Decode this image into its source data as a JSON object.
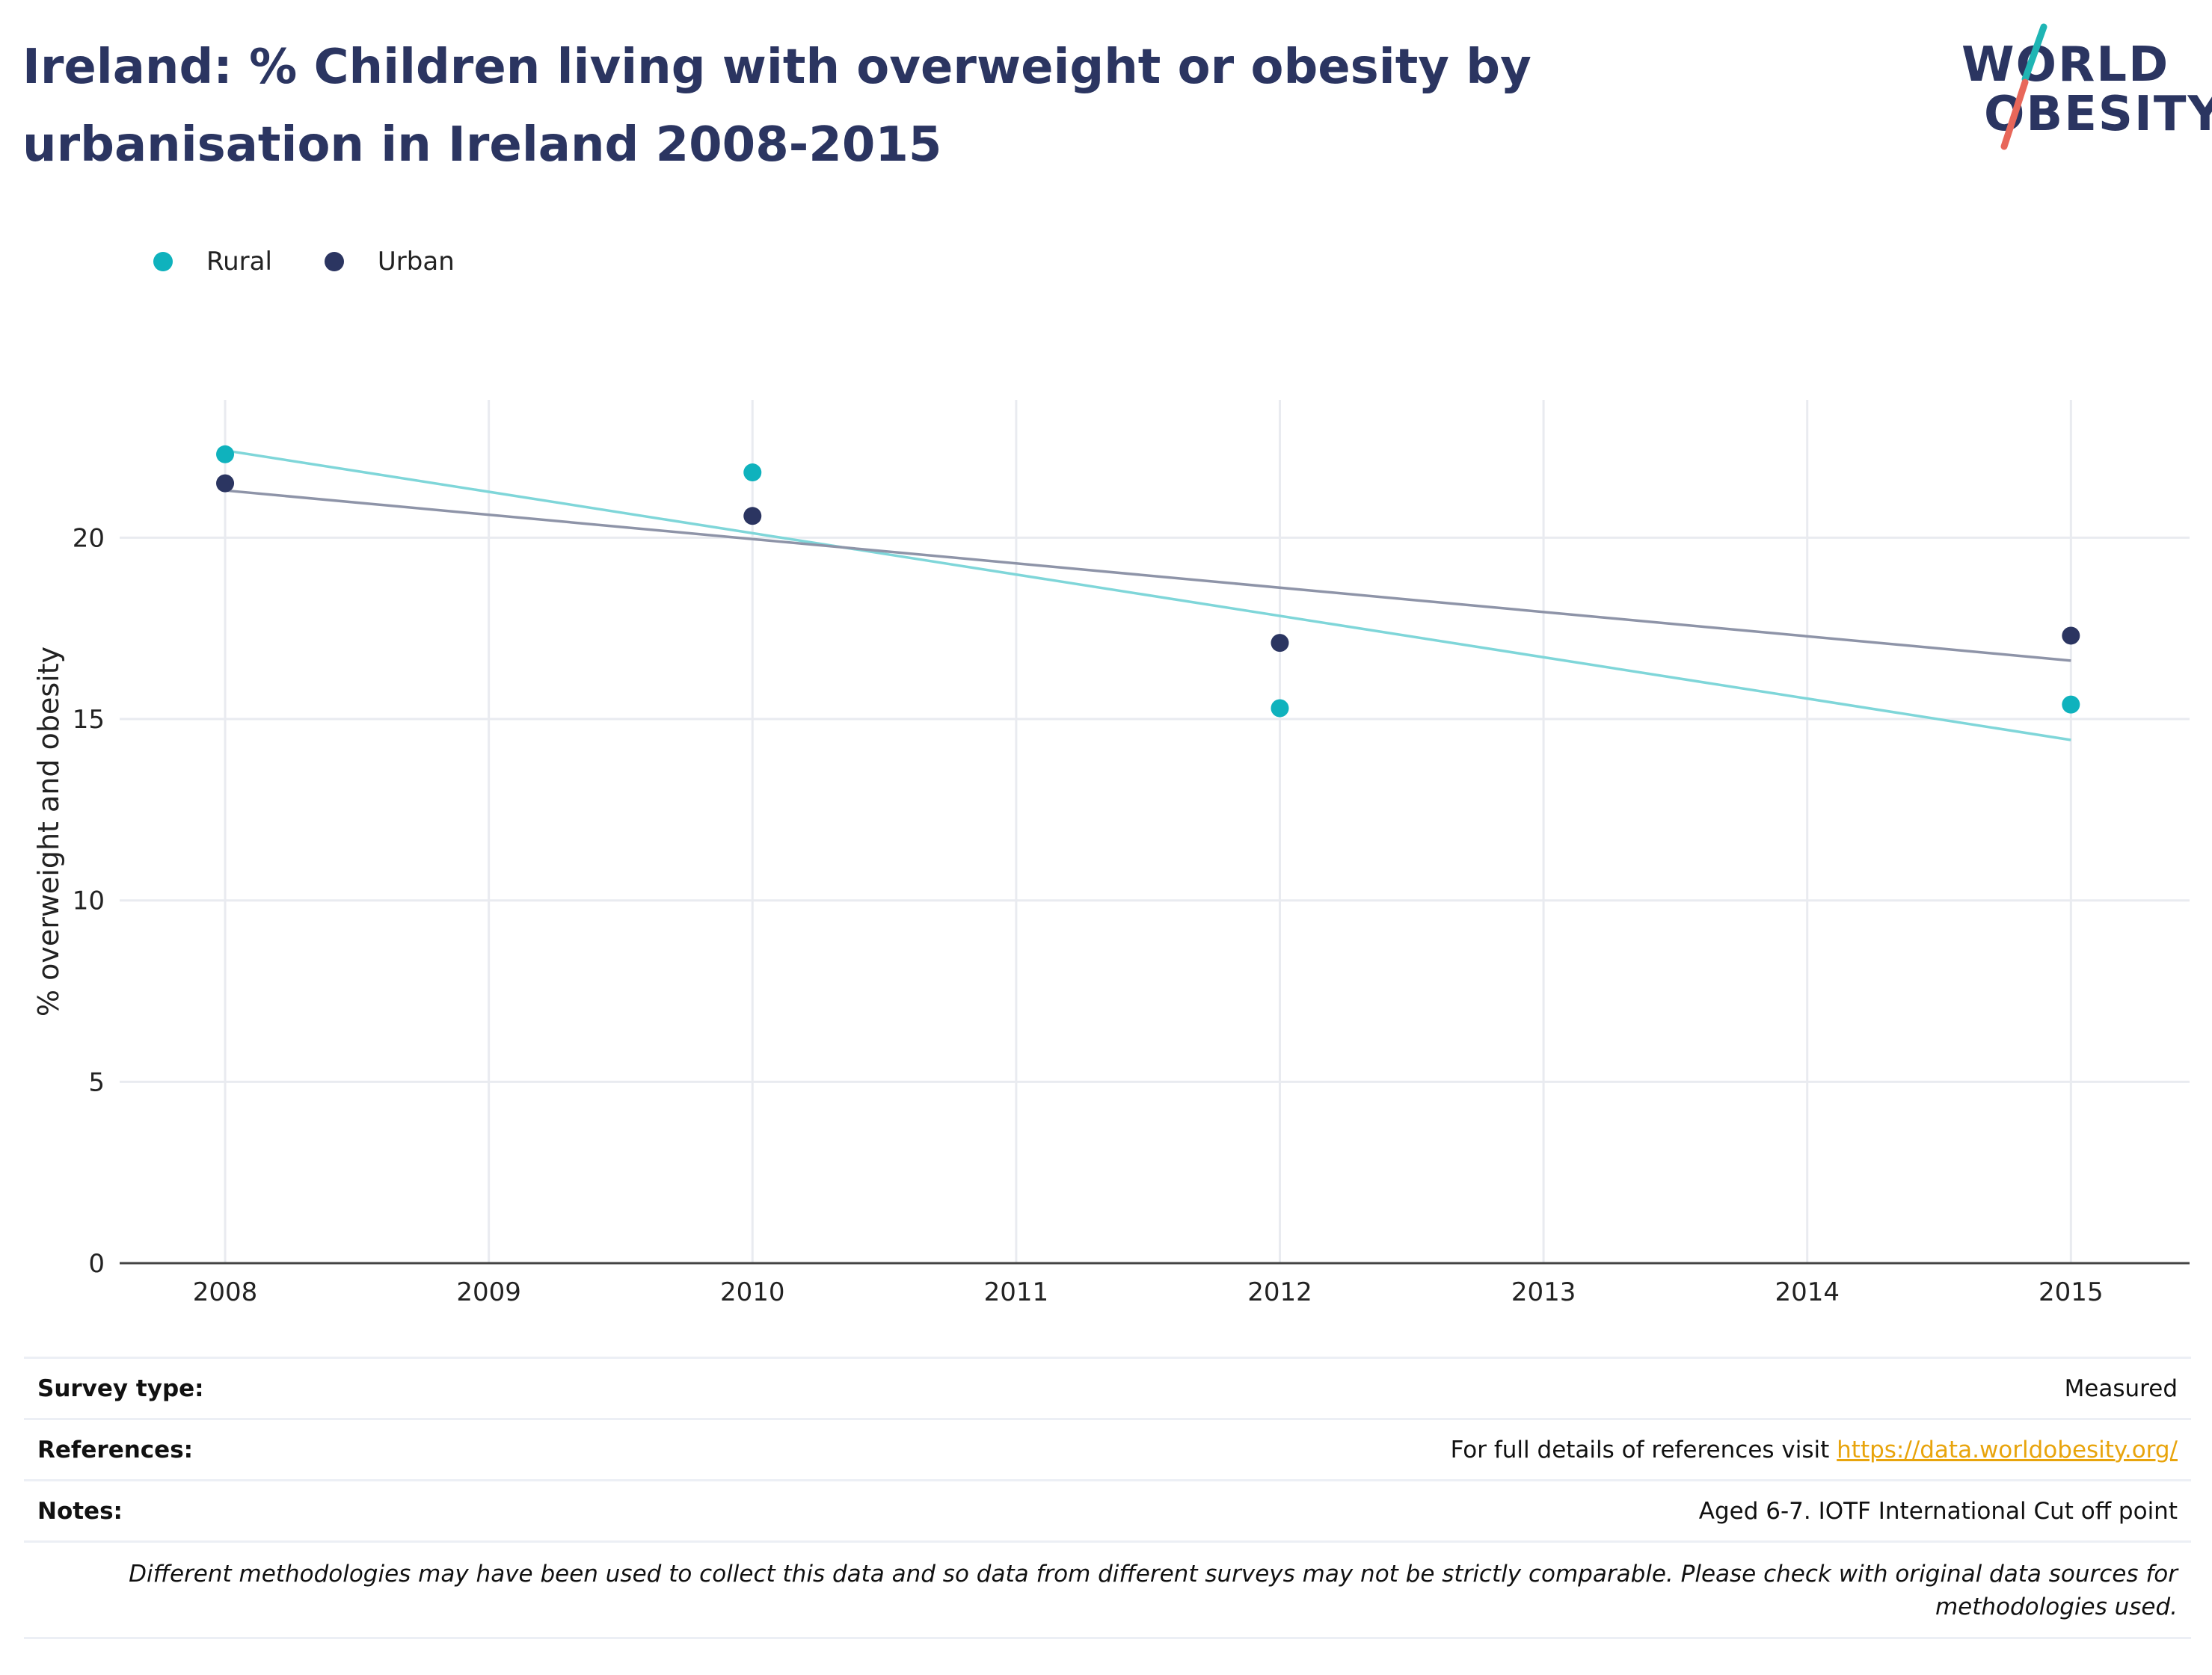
{
  "header": {
    "title": "Ireland: % Children living with overweight or obesity by urbanisation in Ireland 2008-2015"
  },
  "logo": {
    "line1": "WORLD",
    "line2": "OBESITY",
    "colors": {
      "text": "#2b3561",
      "slash_top": "#1fb5b4",
      "slash_bottom": "#e8675a"
    }
  },
  "chart_data": {
    "type": "scatter",
    "title": "Ireland: % Children living with overweight or obesity by urbanisation in Ireland 2008-2015",
    "xlabel": "",
    "ylabel": "% overweight and obesity",
    "xlim": [
      2007.6,
      2015.45
    ],
    "ylim": [
      0,
      23.8
    ],
    "x_ticks": [
      "2008",
      "2009",
      "2010",
      "2011",
      "2012",
      "2013",
      "2014",
      "2015"
    ],
    "y_ticks": [
      "0",
      "5",
      "10",
      "15",
      "20"
    ],
    "grid": true,
    "legend_position": "top-left",
    "trendlines": true,
    "series": [
      {
        "name": "Rural",
        "color": "#0fb2bd",
        "trend_color": "#7fd6d9",
        "points": [
          {
            "x": 2008,
            "y": 22.3
          },
          {
            "x": 2010,
            "y": 21.8
          },
          {
            "x": 2012,
            "y": 15.3
          },
          {
            "x": 2015,
            "y": 15.4
          }
        ]
      },
      {
        "name": "Urban",
        "color": "#2b3561",
        "trend_color": "#8e94a8",
        "points": [
          {
            "x": 2008,
            "y": 21.5
          },
          {
            "x": 2010,
            "y": 20.6
          },
          {
            "x": 2012,
            "y": 17.1
          },
          {
            "x": 2015,
            "y": 17.3
          }
        ]
      }
    ]
  },
  "info": {
    "survey_type": {
      "label": "Survey type:",
      "value": "Measured"
    },
    "references": {
      "label": "References:",
      "value_prefix": "For full details of references visit ",
      "link_text": "https://data.worldobesity.org/"
    },
    "notes": {
      "label": "Notes:",
      "value": "Aged 6-7. IOTF International Cut off point"
    },
    "disclaimer": "Different methodologies may have been used to collect this data and so data from different surveys may not be strictly comparable. Please check with original data sources for methodologies used."
  }
}
